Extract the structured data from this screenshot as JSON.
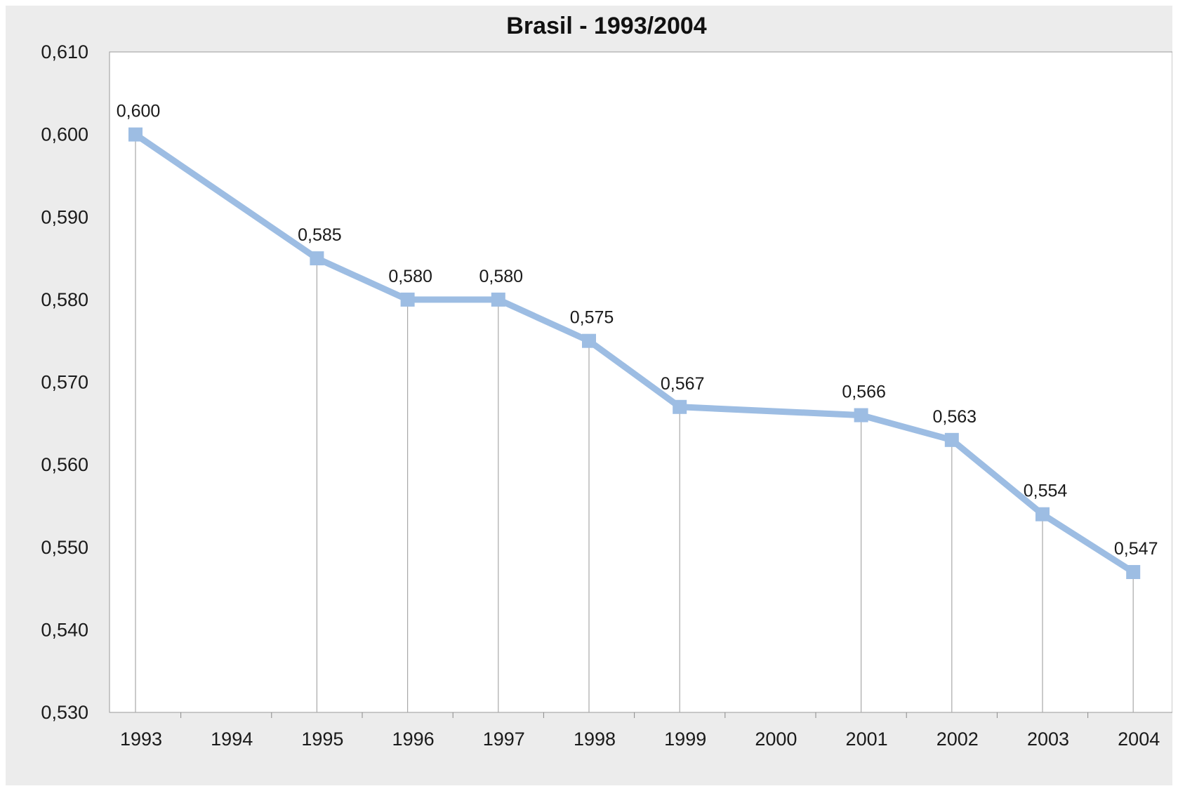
{
  "chart_data": {
    "type": "line",
    "title": "Brasil - 1993/2004",
    "xlabel": "",
    "ylabel": "",
    "categories": [
      "1993",
      "1994",
      "1995",
      "1996",
      "1997",
      "1998",
      "1999",
      "2000",
      "2001",
      "2002",
      "2003",
      "2004"
    ],
    "series": [
      {
        "color": "#9dbde3",
        "points": [
          {
            "x": "1993",
            "y": 0.6,
            "label": "0,600"
          },
          {
            "x": "1995",
            "y": 0.585,
            "label": "0,585"
          },
          {
            "x": "1996",
            "y": 0.58,
            "label": "0,580"
          },
          {
            "x": "1997",
            "y": 0.58,
            "label": "0,580"
          },
          {
            "x": "1998",
            "y": 0.575,
            "label": "0,575"
          },
          {
            "x": "1999",
            "y": 0.567,
            "label": "0,567"
          },
          {
            "x": "2001",
            "y": 0.566,
            "label": "0,566"
          },
          {
            "x": "2002",
            "y": 0.563,
            "label": "0,563"
          },
          {
            "x": "2003",
            "y": 0.554,
            "label": "0,554"
          },
          {
            "x": "2004",
            "y": 0.547,
            "label": "0,547"
          }
        ]
      }
    ],
    "ylim": [
      0.53,
      0.61
    ],
    "yticks": [
      {
        "value": 0.53,
        "label": "0,530"
      },
      {
        "value": 0.54,
        "label": "0,540"
      },
      {
        "value": 0.55,
        "label": "0,550"
      },
      {
        "value": 0.56,
        "label": "0,560"
      },
      {
        "value": 0.57,
        "label": "0,570"
      },
      {
        "value": 0.58,
        "label": "0,580"
      },
      {
        "value": 0.59,
        "label": "0,590"
      },
      {
        "value": 0.6,
        "label": "0,600"
      },
      {
        "value": 0.61,
        "label": "0,610"
      }
    ],
    "grid": false,
    "drop_lines": true,
    "legend": "none"
  }
}
